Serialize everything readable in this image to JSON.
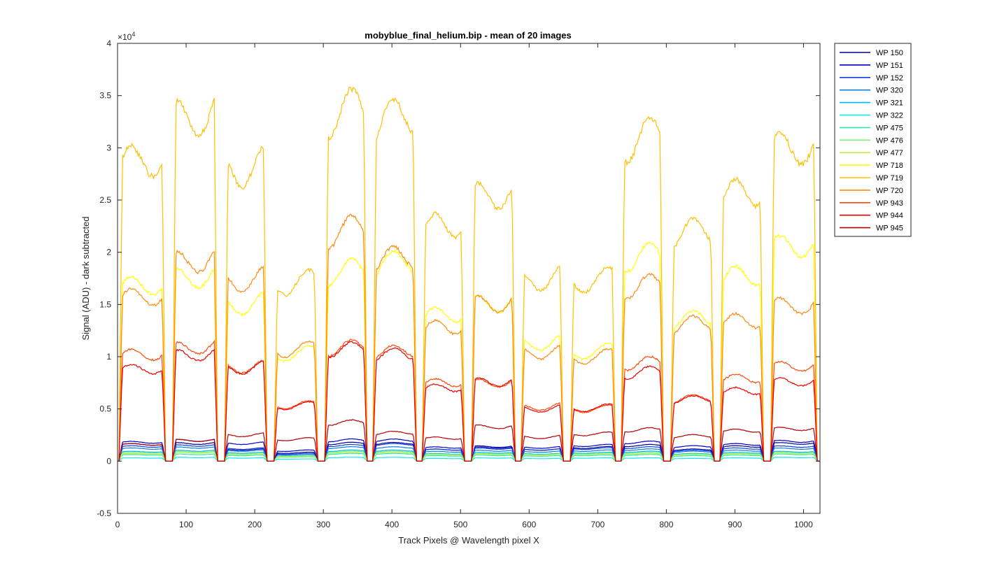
{
  "chart_data": {
    "type": "line",
    "title": "mobyblue_final_helium.bip - mean of 20 images",
    "xlabel": "Track Pixels @ Wavelength pixel X",
    "ylabel": "Signal (ADU) - dark subtracted",
    "y_exponent_label": "×10",
    "y_exponent_power": "4",
    "xlim": [
      0,
      1024
    ],
    "ylim": [
      -5000,
      40000
    ],
    "xticks": [
      0,
      100,
      200,
      300,
      400,
      500,
      600,
      700,
      800,
      900,
      1000
    ],
    "xtick_labels": [
      "0",
      "100",
      "200",
      "300",
      "400",
      "500",
      "600",
      "700",
      "800",
      "900",
      "1000"
    ],
    "yticks": [
      -5000,
      0,
      5000,
      10000,
      15000,
      20000,
      25000,
      30000,
      35000,
      40000
    ],
    "ytick_labels": [
      "-0.5",
      "0",
      "0.5",
      "1",
      "1.5",
      "2",
      "2.5",
      "3",
      "3.5",
      "4"
    ],
    "grid": false,
    "legend_position": "outside-right-top",
    "segments": [
      {
        "start": 2,
        "end": 70
      },
      {
        "start": 80,
        "end": 146
      },
      {
        "start": 156,
        "end": 218
      },
      {
        "start": 228,
        "end": 292
      },
      {
        "start": 302,
        "end": 364
      },
      {
        "start": 372,
        "end": 436
      },
      {
        "start": 444,
        "end": 506
      },
      {
        "start": 516,
        "end": 580
      },
      {
        "start": 588,
        "end": 650
      },
      {
        "start": 660,
        "end": 726
      },
      {
        "start": 734,
        "end": 796
      },
      {
        "start": 806,
        "end": 870
      },
      {
        "start": 878,
        "end": 942
      },
      {
        "start": 952,
        "end": 1020
      }
    ],
    "series": [
      {
        "name": "WP 150",
        "color": "#00008f",
        "levels": [
          1600,
          1700,
          1100,
          800,
          1700,
          1700,
          1100,
          1300,
          1100,
          1300,
          1500,
          1100,
          1400,
          1700
        ]
      },
      {
        "name": "WP 151",
        "color": "#0000c8",
        "levels": [
          1800,
          2000,
          1700,
          1000,
          2000,
          2000,
          1300,
          1400,
          1300,
          1500,
          1800,
          1400,
          1600,
          1900
        ]
      },
      {
        "name": "WP 152",
        "color": "#0f3fe8",
        "levels": [
          1400,
          1500,
          1200,
          700,
          1500,
          1600,
          1100,
          1200,
          1100,
          1200,
          1300,
          1000,
          1200,
          1400
        ]
      },
      {
        "name": "WP 320",
        "color": "#0a7fdf",
        "levels": [
          1200,
          1300,
          1000,
          600,
          1300,
          1300,
          900,
          1000,
          900,
          1000,
          1100,
          900,
          1000,
          1200
        ]
      },
      {
        "name": "WP 321",
        "color": "#00b7ef",
        "levels": [
          900,
          1000,
          800,
          500,
          1000,
          1000,
          700,
          800,
          700,
          800,
          900,
          700,
          800,
          900
        ]
      },
      {
        "name": "WP 322",
        "color": "#10e8e8",
        "levels": [
          300,
          350,
          300,
          200,
          350,
          350,
          250,
          300,
          250,
          300,
          300,
          250,
          300,
          350
        ]
      },
      {
        "name": "WP 475",
        "color": "#2fe8b0",
        "levels": [
          600,
          650,
          550,
          400,
          700,
          700,
          500,
          550,
          500,
          550,
          600,
          500,
          550,
          650
        ]
      },
      {
        "name": "WP 476",
        "color": "#7fef80",
        "levels": [
          800,
          900,
          700,
          500,
          900,
          900,
          650,
          700,
          650,
          700,
          800,
          650,
          700,
          800
        ]
      },
      {
        "name": "WP 477",
        "color": "#c0f040",
        "levels": [
          700,
          800,
          650,
          450,
          800,
          800,
          600,
          650,
          600,
          650,
          700,
          600,
          650,
          750
        ]
      },
      {
        "name": "WP 718",
        "color": "#ffff00",
        "levels": [
          16800,
          17600,
          15000,
          10300,
          18200,
          19000,
          14000,
          15100,
          11300,
          10500,
          19600,
          13600,
          17700,
          20600
        ]
      },
      {
        "name": "WP 719",
        "color": "#ffbf00",
        "levels": [
          28700,
          33000,
          28000,
          17100,
          33500,
          32800,
          22500,
          25500,
          17400,
          17300,
          30900,
          21900,
          25600,
          30000
        ]
      },
      {
        "name": "WP 720",
        "color": "#ff8a0f",
        "levels": [
          15700,
          19200,
          17300,
          10700,
          22100,
          19400,
          12800,
          15100,
          10400,
          10000,
          16800,
          13100,
          13400,
          14900
        ]
      },
      {
        "name": "WP 943",
        "color": "#ff4a0a",
        "levels": [
          10200,
          10900,
          9000,
          5400,
          10900,
          10500,
          7500,
          7500,
          5200,
          5000,
          9400,
          6000,
          7900,
          9100
        ]
      },
      {
        "name": "WP 944",
        "color": "#ef0000",
        "levels": [
          8800,
          10200,
          8900,
          5300,
          10700,
          10200,
          7000,
          7600,
          5000,
          5100,
          8500,
          5900,
          6700,
          7600
        ]
      },
      {
        "name": "WP 945",
        "color": "#b40000",
        "levels": [
          1600,
          2000,
          2500,
          2100,
          3700,
          2700,
          2200,
          3300,
          2300,
          2600,
          3000,
          2400,
          2900,
          3100
        ]
      }
    ]
  }
}
